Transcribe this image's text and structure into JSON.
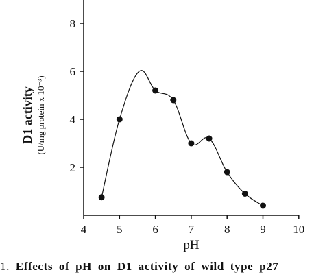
{
  "chart_data": {
    "type": "line",
    "x": [
      4.5,
      5,
      6,
      6.5,
      7,
      7.5,
      8,
      8.5,
      9
    ],
    "y": [
      0.75,
      4.0,
      5.2,
      4.8,
      3.0,
      3.2,
      1.8,
      0.9,
      0.4
    ],
    "xlim": [
      4,
      10
    ],
    "ylim": [
      0,
      9
    ],
    "xticks": [
      "4",
      "5",
      "6",
      "7",
      "8",
      "9",
      "10"
    ],
    "yticks": [
      "2",
      "4",
      "6",
      "8"
    ],
    "xlabel": "pH",
    "ylabel": "D1 activity",
    "ylabel_sub": "(U/mg protein x 10⁻³)",
    "grid": false,
    "smooth_line": true
  },
  "caption": {
    "prefix": "1.",
    "text": "Effects of pH on D1 activity of wild type p27"
  }
}
